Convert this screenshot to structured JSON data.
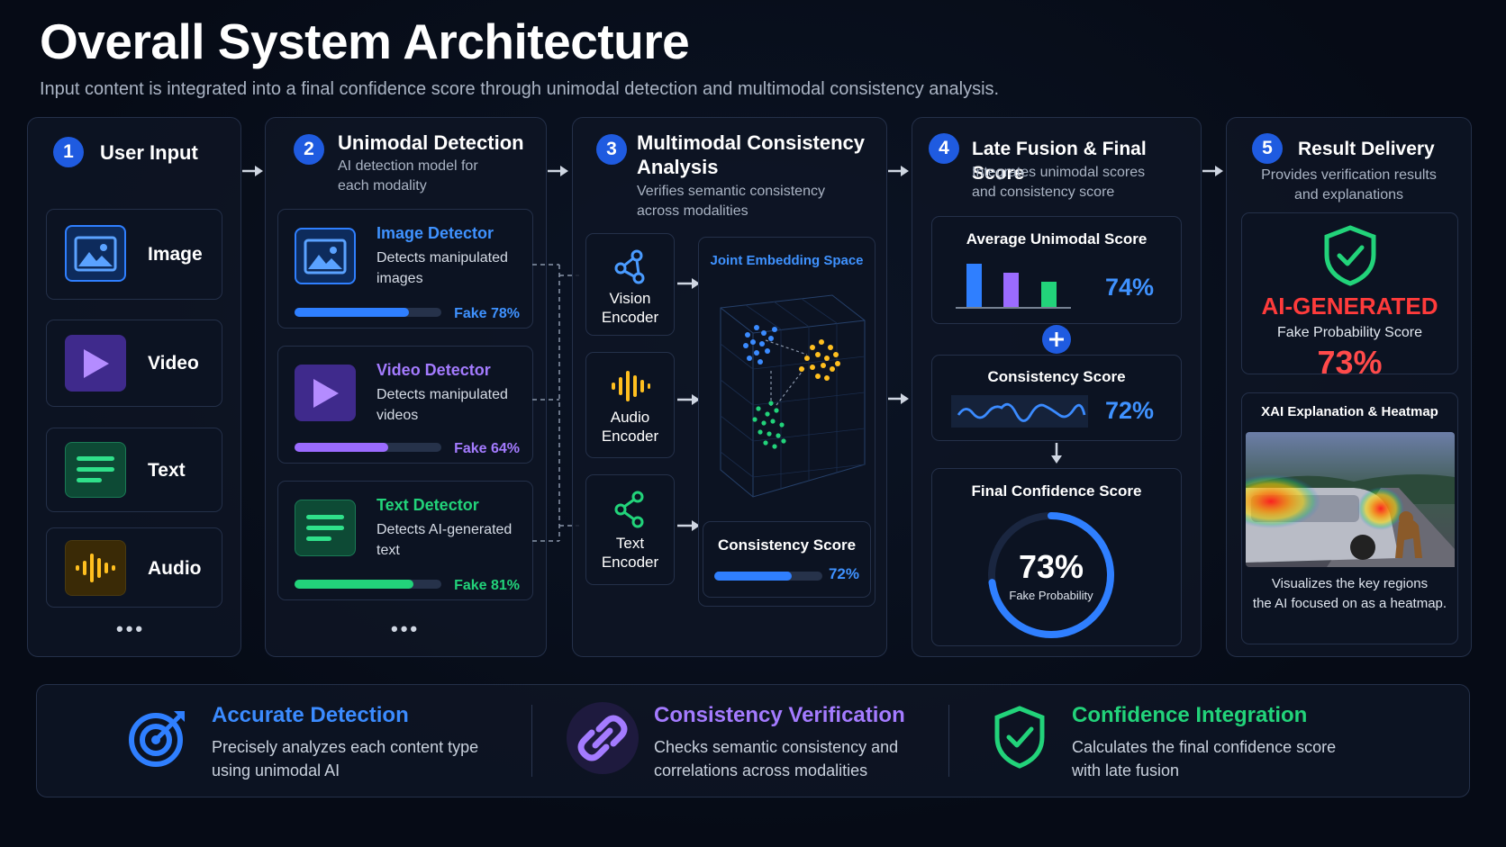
{
  "header": {
    "title": "Overall System Architecture",
    "subtitle": "Input content is integrated into a final confidence score through unimodal detection and multimodal consistency analysis."
  },
  "step1": {
    "number": "1",
    "title": "User Input",
    "inputs": [
      {
        "label": "Image",
        "icon": "image-icon"
      },
      {
        "label": "Video",
        "icon": "play-icon"
      },
      {
        "label": "Text",
        "icon": "text-lines-icon"
      },
      {
        "label": "Audio",
        "icon": "waveform-icon"
      }
    ],
    "more": "•••"
  },
  "step2": {
    "number": "2",
    "title": "Unimodal Detection",
    "desc_line1": "AI detection model for",
    "desc_line2": "each modality",
    "detectors": [
      {
        "title": "Image Detector",
        "desc_line1": "Detects manipulated",
        "desc_line2": "images",
        "fake_label": "Fake 78%",
        "fake_fraction": 0.78,
        "color": "#2f7fff"
      },
      {
        "title": "Video Detector",
        "desc_line1": "Detects manipulated",
        "desc_line2": "videos",
        "fake_label": "Fake 64%",
        "fake_fraction": 0.64,
        "color": "#9b6bff"
      },
      {
        "title": "Text Detector",
        "desc_line1": "Detects AI-generated",
        "desc_line2": "text",
        "fake_label": "Fake 81%",
        "fake_fraction": 0.81,
        "color": "#22d37a"
      }
    ],
    "more": "•••"
  },
  "step3": {
    "number": "3",
    "title_line1": "Multimodal Consistency",
    "title_line2": "Analysis",
    "desc_line1": "Verifies semantic consistency",
    "desc_line2": "across modalities",
    "encoders": [
      {
        "line1": "Vision",
        "line2": "Encoder",
        "icon": "network-nodes-icon"
      },
      {
        "line1": "Audio",
        "line2": "Encoder",
        "icon": "waveform-icon"
      },
      {
        "line1": "Text",
        "line2": "Encoder",
        "icon": "network-nodes-icon"
      }
    ],
    "embedding_label": "Joint Embedding Space",
    "consistency_label": "Consistency Score",
    "consistency_value": "72%",
    "consistency_fraction": 0.72
  },
  "step4": {
    "number": "4",
    "title": "Late Fusion & Final Score",
    "desc_line1": "Integrates unimodal scores",
    "desc_line2": "and consistency score",
    "avg_label": "Average Unimodal Score",
    "avg_value": "74%",
    "consistency_label": "Consistency Score",
    "consistency_value": "72%",
    "final_label": "Final Confidence Score",
    "final_value": "73%",
    "final_fraction": 0.73,
    "final_caption": "Fake Probability"
  },
  "step5": {
    "number": "5",
    "title": "Result Delivery",
    "desc_line1": "Provides verification results",
    "desc_line2": "and explanations",
    "verdict": "AI-GENERATED",
    "fake_prob_label": "Fake Probability Score",
    "fake_prob_value": "73%",
    "xai_label": "XAI Explanation & Heatmap",
    "xai_desc_line1": "Visualizes the key regions",
    "xai_desc_line2": "the AI focused on as a heatmap."
  },
  "features": [
    {
      "title": "Accurate Detection",
      "desc_line1": "Precisely analyzes each content type",
      "desc_line2": "using unimodal AI",
      "color": "#3b8bff",
      "icon": "target-icon"
    },
    {
      "title": "Consistency Verification",
      "desc_line1": "Checks semantic consistency and",
      "desc_line2": "correlations across modalities",
      "color": "#a47bff",
      "icon": "link-icon"
    },
    {
      "title": "Confidence Integration",
      "desc_line1": "Calculates the final confidence score",
      "desc_line2": "with late fusion",
      "color": "#22d37a",
      "icon": "shield-check-icon"
    }
  ]
}
